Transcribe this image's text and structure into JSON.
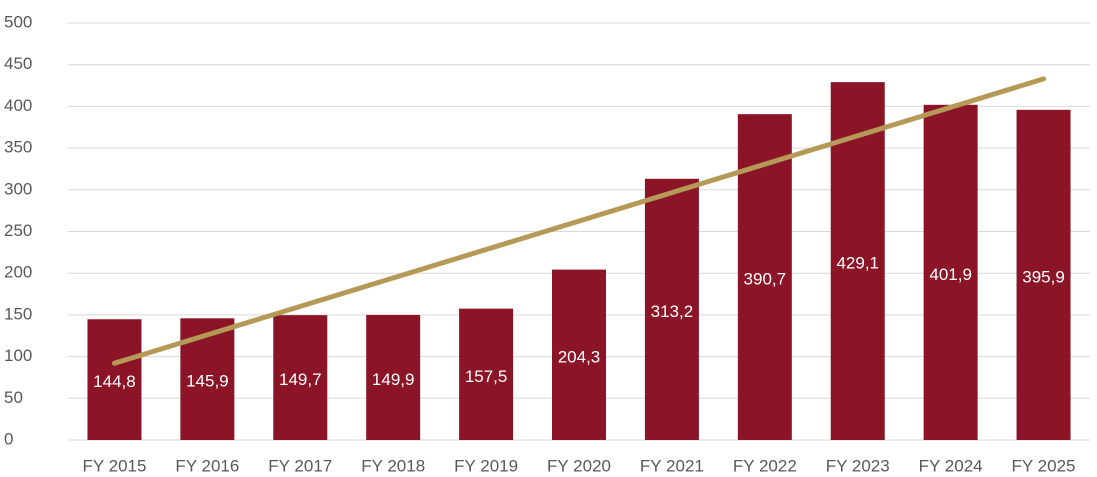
{
  "chart_data": {
    "type": "bar",
    "categories": [
      "FY 2015",
      "FY 2016",
      "FY 2017",
      "FY 2018",
      "FY 2019",
      "FY 2020",
      "FY 2021",
      "FY 2022",
      "FY 2023",
      "FY 2024",
      "FY 2025"
    ],
    "values": [
      144.8,
      145.9,
      149.7,
      149.9,
      157.5,
      204.3,
      313.2,
      390.7,
      429.1,
      401.9,
      395.9
    ],
    "value_labels": [
      "144,8",
      "145,9",
      "149,7",
      "149,9",
      "157,5",
      "204,3",
      "313,2",
      "390,7",
      "429,1",
      "401,9",
      "395,9"
    ],
    "color": "#8b1527",
    "trend": {
      "color": "#b59a57",
      "start": 92,
      "end": 433
    },
    "ylim": [
      0,
      500
    ],
    "yticks": [
      0,
      50,
      100,
      150,
      200,
      250,
      300,
      350,
      400,
      450,
      500
    ],
    "grid": true
  }
}
